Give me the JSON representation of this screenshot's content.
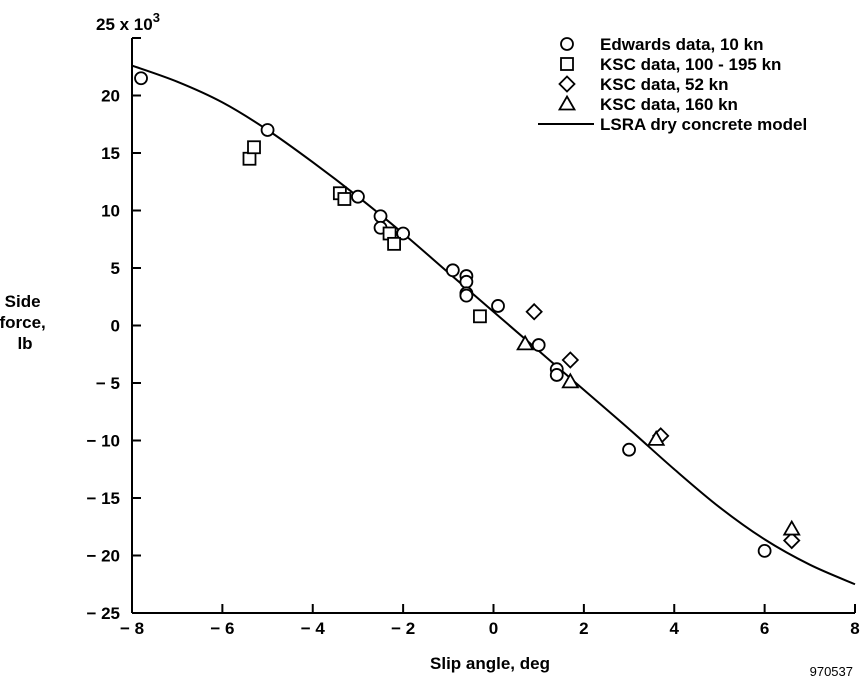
{
  "chart_data": {
    "type": "scatter",
    "xlabel": "Slip angle, deg",
    "ylabel_lines": [
      "Side",
      "force,",
      "lb"
    ],
    "y_multiplier_prefix": "25 x 10",
    "y_multiplier_exp": "3",
    "figure_id": "970537",
    "xlim": [
      -8,
      8
    ],
    "ylim": [
      -25,
      25
    ],
    "x_ticks": [
      -8,
      -6,
      -4,
      -2,
      0,
      2,
      4,
      6,
      8
    ],
    "x_tick_labels": [
      "− 8",
      "− 6",
      "− 4",
      "− 2",
      "0",
      "2",
      "4",
      "6",
      "8"
    ],
    "y_ticks": [
      -25,
      -20,
      -15,
      -10,
      -5,
      0,
      5,
      10,
      15,
      20
    ],
    "y_tick_labels": [
      "− 25",
      "− 20",
      "− 15",
      "− 10",
      "− 5",
      "0",
      "5",
      "10",
      "15",
      "20"
    ],
    "legend_position": "top-right",
    "grid": false,
    "series": [
      {
        "name": "Edwards data, 10 kn",
        "marker": "circle",
        "points": [
          [
            -7.8,
            21.5
          ],
          [
            -5.0,
            17.0
          ],
          [
            -3.0,
            11.2
          ],
          [
            -2.5,
            9.5
          ],
          [
            -2.5,
            8.5
          ],
          [
            -2.0,
            8.0
          ],
          [
            -0.9,
            4.8
          ],
          [
            -0.6,
            4.3
          ],
          [
            -0.6,
            3.8
          ],
          [
            -0.6,
            2.8
          ],
          [
            -0.6,
            2.6
          ],
          [
            0.1,
            1.7
          ],
          [
            1.0,
            -1.7
          ],
          [
            1.4,
            -3.8
          ],
          [
            1.4,
            -4.3
          ],
          [
            3.0,
            -10.8
          ],
          [
            6.0,
            -19.6
          ]
        ]
      },
      {
        "name": "KSC data, 100 - 195 kn",
        "marker": "square",
        "points": [
          [
            -5.4,
            14.5
          ],
          [
            -5.3,
            15.5
          ],
          [
            -3.4,
            11.5
          ],
          [
            -3.3,
            11.0
          ],
          [
            -2.3,
            8.0
          ],
          [
            -2.2,
            7.1
          ],
          [
            -0.3,
            0.8
          ]
        ]
      },
      {
        "name": "KSC data, 52 kn",
        "marker": "diamond",
        "points": [
          [
            0.9,
            1.2
          ],
          [
            1.7,
            -3.0
          ],
          [
            3.7,
            -9.6
          ],
          [
            6.6,
            -18.7
          ]
        ]
      },
      {
        "name": "KSC data, 160 kn",
        "marker": "triangle",
        "points": [
          [
            0.7,
            -1.6
          ],
          [
            1.7,
            -4.9
          ],
          [
            3.6,
            -9.9
          ],
          [
            6.6,
            -17.7
          ]
        ]
      },
      {
        "name": "LSRA dry concrete model",
        "marker": "line",
        "points": [
          [
            -8,
            22.6
          ],
          [
            -7,
            21.2
          ],
          [
            -6,
            19.4
          ],
          [
            -5,
            17.0
          ],
          [
            -4,
            14.2
          ],
          [
            -3,
            11.2
          ],
          [
            -2,
            8.0
          ],
          [
            -1,
            4.6
          ],
          [
            0,
            1.2
          ],
          [
            1,
            -2.2
          ],
          [
            2,
            -5.6
          ],
          [
            3,
            -9.0
          ],
          [
            4,
            -12.5
          ],
          [
            5,
            -15.8
          ],
          [
            6,
            -18.6
          ],
          [
            7,
            -20.8
          ],
          [
            8,
            -22.5
          ]
        ]
      }
    ]
  }
}
